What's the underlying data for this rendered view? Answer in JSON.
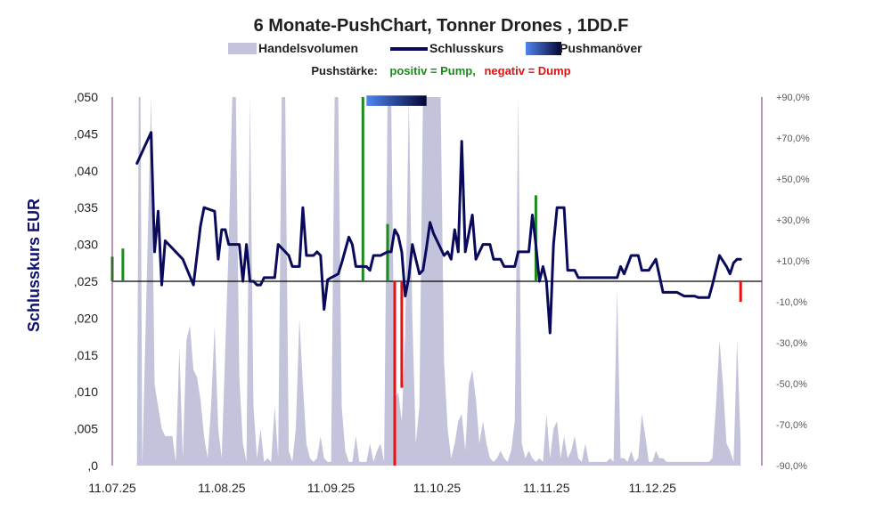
{
  "chart_data": {
    "type": "line",
    "title": "6 Monate-PushChart, Tonner Drones , 1DD.F",
    "legend": [
      {
        "label": "Handelsvolumen",
        "kind": "area",
        "color": "#c3c3dc"
      },
      {
        "label": "Schlusskurs",
        "kind": "line",
        "color": "#0a0a5c"
      },
      {
        "label": "Pushmanöver",
        "kind": "gradient",
        "color": "#3a6ee8"
      }
    ],
    "push_legend": {
      "prefix": "Pushstärke:",
      "positive": "positiv = Pump,",
      "negative": "negativ = Dump",
      "positive_color": "#1a8a1a",
      "negative_color": "#e81010"
    },
    "ylabel": "Schlusskurs EUR",
    "ylim": [
      0,
      0.05
    ],
    "y_ticks": [
      ",050",
      ",045",
      ",040",
      ",035",
      ",030",
      ",025",
      ",020",
      ",015",
      ",010",
      ",005",
      ",0"
    ],
    "y2lim": [
      -90,
      90
    ],
    "y2_ticks": [
      "+90,0%",
      "+70,0%",
      "+50,0%",
      "+30,0%",
      "+10,0%",
      "-10,0%",
      "-30,0%",
      "-50,0%",
      "-70,0%",
      "-90,0%"
    ],
    "x_range": [
      "2025-07-11",
      "2026-01-11"
    ],
    "x_ticks": [
      "11.07.25",
      "11.08.25",
      "11.09.25",
      "11.10.25",
      "11.11.25",
      "11.12.25"
    ],
    "baseline": 0.025,
    "close": [
      [
        7,
        0.041
      ],
      [
        11,
        0.0452
      ],
      [
        12,
        0.029
      ],
      [
        13,
        0.0345
      ],
      [
        14,
        0.0245
      ],
      [
        15,
        0.0305
      ],
      [
        18,
        0.029
      ],
      [
        20,
        0.028
      ],
      [
        23,
        0.0245
      ],
      [
        25,
        0.0325
      ],
      [
        26,
        0.035
      ],
      [
        29,
        0.0345
      ],
      [
        30,
        0.028
      ],
      [
        31,
        0.032
      ],
      [
        32,
        0.032
      ],
      [
        33,
        0.03
      ],
      [
        36,
        0.03
      ],
      [
        37,
        0.025
      ],
      [
        38,
        0.03
      ],
      [
        39,
        0.025
      ],
      [
        40,
        0.025
      ],
      [
        41,
        0.0245
      ],
      [
        42,
        0.0245
      ],
      [
        43,
        0.0255
      ],
      [
        46,
        0.0255
      ],
      [
        47,
        0.03
      ],
      [
        50,
        0.0285
      ],
      [
        51,
        0.027
      ],
      [
        53,
        0.027
      ],
      [
        54,
        0.035
      ],
      [
        55,
        0.0285
      ],
      [
        56,
        0.0285
      ],
      [
        57,
        0.0285
      ],
      [
        58,
        0.029
      ],
      [
        59,
        0.0285
      ],
      [
        60,
        0.0212
      ],
      [
        61,
        0.0252
      ],
      [
        62,
        0.0255
      ],
      [
        64,
        0.026
      ],
      [
        65,
        0.0275
      ],
      [
        67,
        0.031
      ],
      [
        68,
        0.03
      ],
      [
        69,
        0.027
      ],
      [
        71,
        0.027
      ],
      [
        72,
        0.027
      ],
      [
        73,
        0.0265
      ],
      [
        74,
        0.0285
      ],
      [
        76,
        0.0285
      ],
      [
        78,
        0.029
      ],
      [
        79,
        0.029
      ],
      [
        80,
        0.032
      ],
      [
        81,
        0.0312
      ],
      [
        82,
        0.029
      ],
      [
        83,
        0.023
      ],
      [
        84,
        0.0255
      ],
      [
        85,
        0.03
      ],
      [
        86,
        0.028
      ],
      [
        87,
        0.026
      ],
      [
        88,
        0.0265
      ],
      [
        89,
        0.0295
      ],
      [
        90,
        0.033
      ],
      [
        91,
        0.0315
      ],
      [
        94,
        0.0285
      ],
      [
        95,
        0.029
      ],
      [
        96,
        0.028
      ],
      [
        97,
        0.032
      ],
      [
        98,
        0.029
      ],
      [
        99,
        0.044
      ],
      [
        100,
        0.029
      ],
      [
        101,
        0.0315
      ],
      [
        102,
        0.034
      ],
      [
        103,
        0.028
      ],
      [
        105,
        0.03
      ],
      [
        107,
        0.03
      ],
      [
        108,
        0.028
      ],
      [
        110,
        0.028
      ],
      [
        111,
        0.027
      ],
      [
        112,
        0.027
      ],
      [
        114,
        0.027
      ],
      [
        115,
        0.029
      ],
      [
        118,
        0.029
      ],
      [
        119,
        0.034
      ],
      [
        120,
        0.03
      ],
      [
        121,
        0.025
      ],
      [
        122,
        0.027
      ],
      [
        123,
        0.025
      ],
      [
        124,
        0.018
      ],
      [
        125,
        0.03
      ],
      [
        126,
        0.035
      ],
      [
        128,
        0.035
      ],
      [
        129,
        0.0265
      ],
      [
        131,
        0.0265
      ],
      [
        132,
        0.0255
      ],
      [
        143,
        0.0255
      ],
      [
        144,
        0.027
      ],
      [
        145,
        0.026
      ],
      [
        147,
        0.0285
      ],
      [
        149,
        0.0285
      ],
      [
        150,
        0.0265
      ],
      [
        152,
        0.0265
      ],
      [
        154,
        0.028
      ],
      [
        156,
        0.0235
      ],
      [
        160,
        0.0235
      ],
      [
        162,
        0.023
      ],
      [
        165,
        0.023
      ],
      [
        166,
        0.0228
      ],
      [
        169,
        0.0228
      ],
      [
        170,
        0.0245
      ],
      [
        172,
        0.0285
      ],
      [
        174,
        0.027
      ],
      [
        175,
        0.026
      ],
      [
        176,
        0.0275
      ],
      [
        177,
        0.028
      ],
      [
        178,
        0.028
      ]
    ],
    "volume": [
      [
        7,
        0.0
      ],
      [
        7.5,
        0.06
      ],
      [
        8,
        0.06
      ],
      [
        8.5,
        0.0
      ],
      [
        11,
        0.06
      ],
      [
        12,
        0.011
      ],
      [
        13,
        0.008
      ],
      [
        14,
        0.005
      ],
      [
        15,
        0.004
      ],
      [
        16,
        0.004
      ],
      [
        17,
        0.004
      ],
      [
        18,
        0.0005
      ],
      [
        19,
        0.016
      ],
      [
        20,
        0.001
      ],
      [
        21,
        0.017
      ],
      [
        22,
        0.019
      ],
      [
        23,
        0.013
      ],
      [
        24,
        0.012
      ],
      [
        25,
        0.009
      ],
      [
        26,
        0.004
      ],
      [
        27,
        0.001
      ],
      [
        28,
        0.008
      ],
      [
        29,
        0.019
      ],
      [
        30,
        0.005
      ],
      [
        31,
        0.001
      ],
      [
        33,
        0.03
      ],
      [
        34,
        0.06
      ],
      [
        35,
        0.06
      ],
      [
        36,
        0.012
      ],
      [
        37,
        0.003
      ],
      [
        38,
        0.0005
      ],
      [
        39,
        0.05
      ],
      [
        40,
        0.008
      ],
      [
        41,
        0.001
      ],
      [
        42,
        0.005
      ],
      [
        43,
        0.0005
      ],
      [
        44,
        0.001
      ],
      [
        45,
        0.0005
      ],
      [
        46,
        0.008
      ],
      [
        47,
        0.001
      ],
      [
        48,
        0.06
      ],
      [
        49,
        0.06
      ],
      [
        50,
        0.002
      ],
      [
        51,
        0.0005
      ],
      [
        52,
        0.005
      ],
      [
        53,
        0.02
      ],
      [
        54,
        0.011
      ],
      [
        55,
        0.003
      ],
      [
        56,
        0.001
      ],
      [
        57,
        0.0005
      ],
      [
        58,
        0.001
      ],
      [
        59,
        0.004
      ],
      [
        60,
        0.001
      ],
      [
        61,
        0.0005
      ],
      [
        62,
        0.0005
      ],
      [
        63,
        0.06
      ],
      [
        64,
        0.06
      ],
      [
        65,
        0.008
      ],
      [
        66,
        0.002
      ],
      [
        67,
        0.0005
      ],
      [
        68,
        0.0005
      ],
      [
        69,
        0.004
      ],
      [
        70,
        0.0005
      ],
      [
        71,
        0.0005
      ],
      [
        72,
        0.0005
      ],
      [
        73,
        0.003
      ],
      [
        74,
        0.0005
      ],
      [
        75,
        0.002
      ],
      [
        76,
        0.003
      ],
      [
        77,
        0.0005
      ],
      [
        78,
        0.06
      ],
      [
        79,
        0.06
      ],
      [
        80,
        0.009
      ],
      [
        81,
        0.01
      ],
      [
        82,
        0.006
      ],
      [
        83,
        0.018
      ],
      [
        84,
        0.06
      ],
      [
        85,
        0.02
      ],
      [
        86,
        0.003
      ],
      [
        87,
        0.008
      ],
      [
        88,
        0.06
      ],
      [
        89,
        0.06
      ],
      [
        90,
        0.06
      ],
      [
        91,
        0.06
      ],
      [
        92,
        0.06
      ],
      [
        93,
        0.06
      ],
      [
        94,
        0.014
      ],
      [
        95,
        0.005
      ],
      [
        96,
        0.001
      ],
      [
        97,
        0.003
      ],
      [
        98,
        0.006
      ],
      [
        99,
        0.007
      ],
      [
        100,
        0.002
      ],
      [
        101,
        0.011
      ],
      [
        102,
        0.013
      ],
      [
        103,
        0.009
      ],
      [
        104,
        0.003
      ],
      [
        105,
        0.006
      ],
      [
        106,
        0.003
      ],
      [
        107,
        0.001
      ],
      [
        108,
        0.0005
      ],
      [
        109,
        0.001
      ],
      [
        110,
        0.002
      ],
      [
        111,
        0.001
      ],
      [
        112,
        0.0005
      ],
      [
        113,
        0.002
      ],
      [
        114,
        0.006
      ],
      [
        115,
        0.05
      ],
      [
        116,
        0.003
      ],
      [
        117,
        0.001
      ],
      [
        118,
        0.002
      ],
      [
        119,
        0.001
      ],
      [
        120,
        0.0005
      ],
      [
        121,
        0.001
      ],
      [
        122,
        0.0005
      ],
      [
        123,
        0.007
      ],
      [
        124,
        0.001
      ],
      [
        125,
        0.005
      ],
      [
        126,
        0.006
      ],
      [
        127,
        0.001
      ],
      [
        128,
        0.004
      ],
      [
        129,
        0.001
      ],
      [
        130,
        0.002
      ],
      [
        131,
        0.004
      ],
      [
        132,
        0.001
      ],
      [
        133,
        0.0005
      ],
      [
        134,
        0.003
      ],
      [
        135,
        0.0005
      ],
      [
        136,
        0.0005
      ],
      [
        137,
        0.0005
      ],
      [
        138,
        0.0005
      ],
      [
        139,
        0.0005
      ],
      [
        140,
        0.0005
      ],
      [
        141,
        0.001
      ],
      [
        142,
        0.0005
      ],
      [
        143,
        0.024
      ],
      [
        144,
        0.001
      ],
      [
        145,
        0.001
      ],
      [
        146,
        0.0005
      ],
      [
        147,
        0.002
      ],
      [
        148,
        0.0005
      ],
      [
        149,
        0.001
      ],
      [
        150,
        0.007
      ],
      [
        151,
        0.004
      ],
      [
        152,
        0.0005
      ],
      [
        153,
        0.0005
      ],
      [
        154,
        0.002
      ],
      [
        155,
        0.001
      ],
      [
        156,
        0.001
      ],
      [
        157,
        0.0005
      ],
      [
        158,
        0.0005
      ],
      [
        159,
        0.0005
      ],
      [
        160,
        0.0005
      ],
      [
        161,
        0.0005
      ],
      [
        162,
        0.0005
      ],
      [
        163,
        0.0005
      ],
      [
        164,
        0.0005
      ],
      [
        165,
        0.0005
      ],
      [
        166,
        0.0005
      ],
      [
        167,
        0.0005
      ],
      [
        168,
        0.0005
      ],
      [
        169,
        0.0005
      ],
      [
        170,
        0.001
      ],
      [
        171,
        0.008
      ],
      [
        172,
        0.017
      ],
      [
        173,
        0.011
      ],
      [
        174,
        0.003
      ],
      [
        175,
        0.002
      ],
      [
        176,
        0.0005
      ],
      [
        177,
        0.017
      ],
      [
        178,
        0.003
      ],
      [
        178,
        0
      ]
    ],
    "push_strength": [
      [
        0,
        12
      ],
      [
        3,
        16
      ],
      [
        71,
        90
      ],
      [
        78,
        28
      ],
      [
        80,
        -90
      ],
      [
        82,
        -52
      ],
      [
        120,
        42
      ],
      [
        178,
        -10
      ]
    ],
    "push_manoever": {
      "start_day": 72,
      "end_day": 89,
      "top_value": 0.0502,
      "bottom_value": 0.0488
    }
  }
}
